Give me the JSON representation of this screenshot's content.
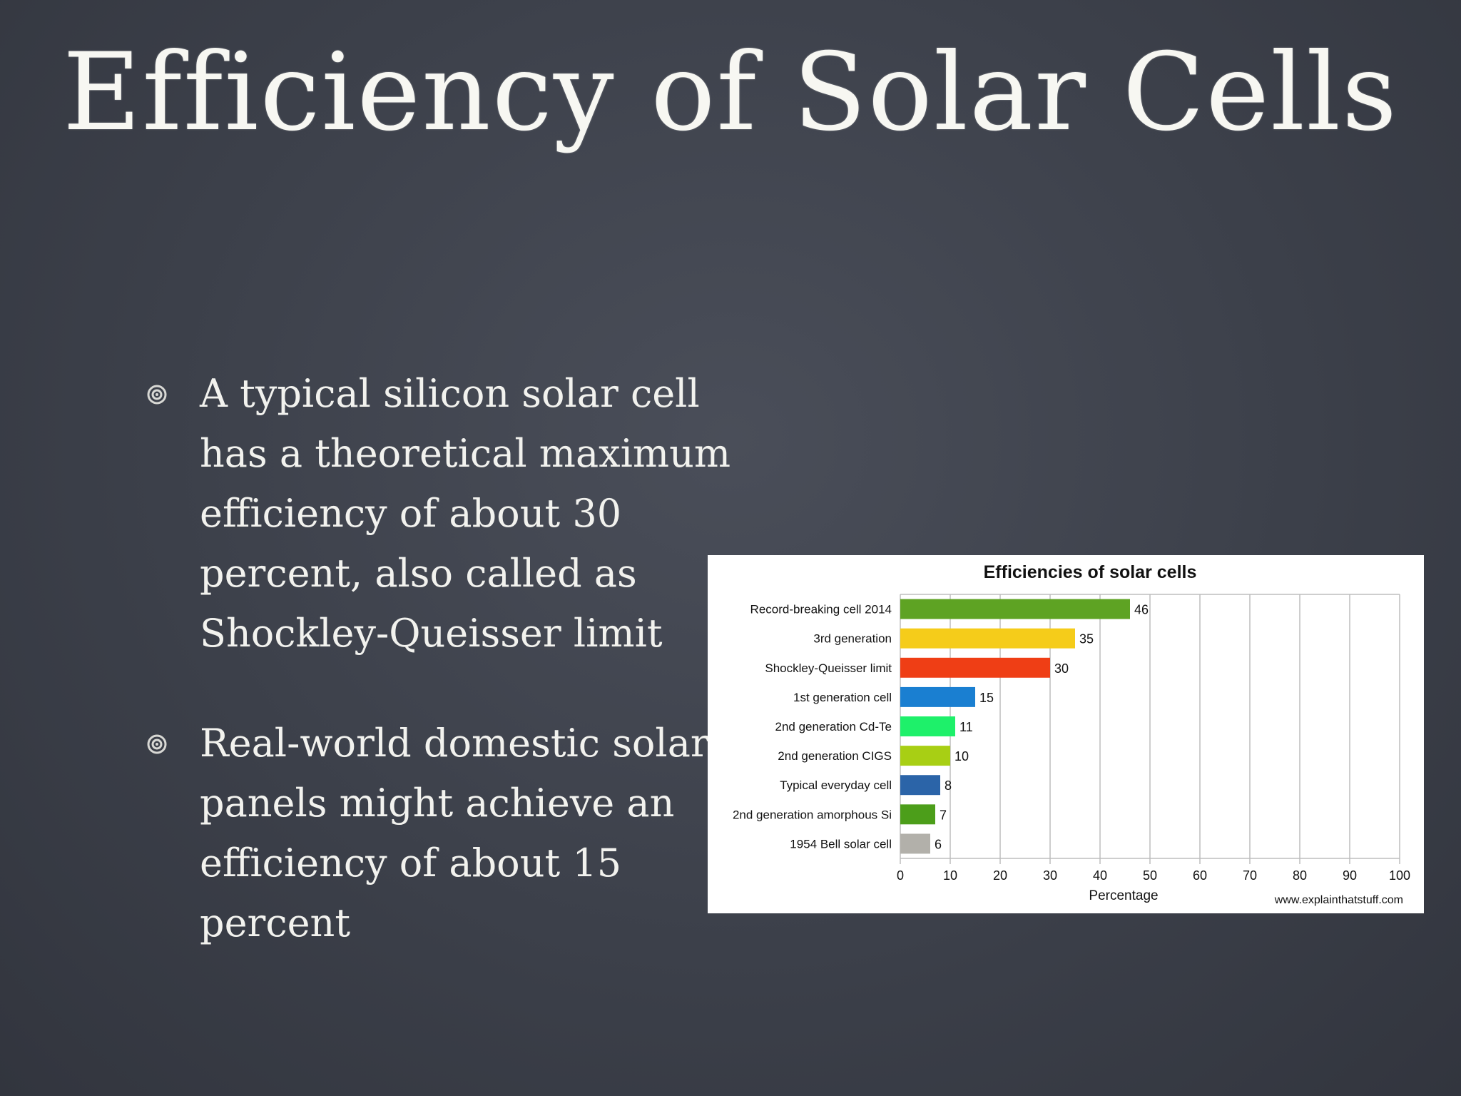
{
  "slide": {
    "title": "Efficiency of Solar Cells",
    "bullets": [
      "A typical silicon solar cell has a theoretical maximum efficiency of about 30 percent, also called as Shockley-Queisser limit",
      "Real-world domestic solar panels might achieve an efficiency of about 15 percent"
    ]
  },
  "chart_data": {
    "type": "bar",
    "orientation": "horizontal",
    "title": "Efficiencies of solar cells",
    "xlabel": "Percentage",
    "ylabel": "",
    "xlim": [
      0,
      100
    ],
    "xticks": [
      0,
      10,
      20,
      30,
      40,
      50,
      60,
      70,
      80,
      90,
      100
    ],
    "grid": true,
    "credit": "www.explainthatstuff.com",
    "categories": [
      "Record-breaking cell 2014",
      "3rd generation",
      "Shockley-Queisser limit",
      "1st generation cell",
      "2nd generation Cd-Te",
      "2nd generation CIGS",
      "Typical everyday cell",
      "2nd generation amorphous Si",
      "1954 Bell solar cell"
    ],
    "values": [
      46,
      35,
      30,
      15,
      11,
      10,
      8,
      7,
      6
    ],
    "colors": [
      "#5ea323",
      "#f5cc1a",
      "#ef3e15",
      "#1a7fd1",
      "#1ef06a",
      "#a8cf14",
      "#2b64a8",
      "#4c9e1a",
      "#b2b0aa"
    ]
  }
}
